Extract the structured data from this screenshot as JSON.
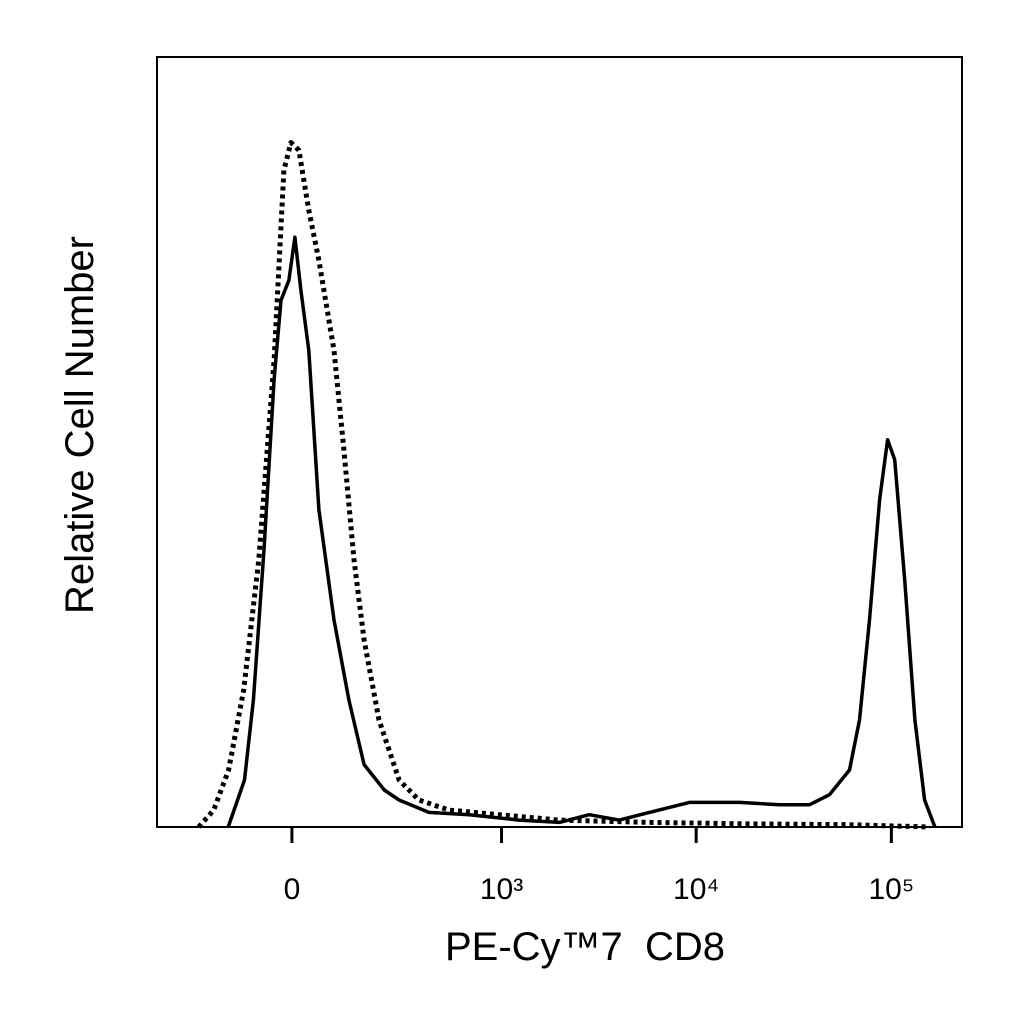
{
  "chart_data": {
    "type": "line",
    "x_label": "PE-Cy™7  CD8",
    "y_label": "Relative Cell Number",
    "xscale": "biexponential",
    "xlim": [
      -400,
      230000
    ],
    "ylim": [
      0,
      100
    ],
    "xticks": [
      0,
      {
        "value": 1000,
        "label": "10³"
      },
      {
        "value": 10000,
        "label": "10⁴"
      },
      {
        "value": 100000,
        "label": "10⁵"
      }
    ],
    "series": [
      {
        "color": "#000000",
        "style": "solid",
        "x": [
          -140,
          -100,
          -80,
          -57,
          -36,
          -22,
          -6,
          6,
          18,
          34,
          55,
          88,
          123,
          163,
          224,
          277,
          411,
          677,
          1230,
          1990,
          2830,
          4040,
          5760,
          9230,
          16700,
          26700,
          38100,
          48200,
          61000,
          68700,
          77300,
          87000,
          95600,
          104000,
          117000,
          132000,
          148000,
          167000
        ],
        "values": [
          0,
          6.1,
          16.5,
          36.0,
          58.1,
          68.4,
          71.0,
          76.6,
          69.7,
          61.9,
          41.2,
          26.9,
          16.5,
          8.1,
          4.8,
          3.5,
          1.9,
          1.6,
          0.9,
          0.6,
          1.6,
          0.9,
          1.9,
          3.2,
          3.2,
          2.9,
          2.9,
          4.2,
          7.4,
          13.9,
          26.9,
          42.5,
          50.3,
          47.7,
          32.1,
          13.9,
          3.5,
          0
        ]
      },
      {
        "color": "#000000",
        "style": "dotted",
        "x": [
          -227,
          -180,
          -139,
          -102,
          -68,
          -36,
          -16,
          -2,
          14,
          34,
          55,
          88,
          111,
          136,
          163,
          207,
          277,
          361,
          529,
          972,
          1990,
          5760,
          18750,
          61000,
          157200
        ],
        "values": [
          0,
          2.2,
          7.4,
          17.8,
          34.7,
          60.6,
          85.3,
          88.9,
          87.9,
          80.1,
          73.6,
          61.9,
          49.0,
          34.7,
          24.3,
          13.9,
          6.1,
          3.5,
          2.2,
          1.6,
          0.9,
          0.6,
          0.4,
          0.3,
          0
        ]
      }
    ]
  }
}
